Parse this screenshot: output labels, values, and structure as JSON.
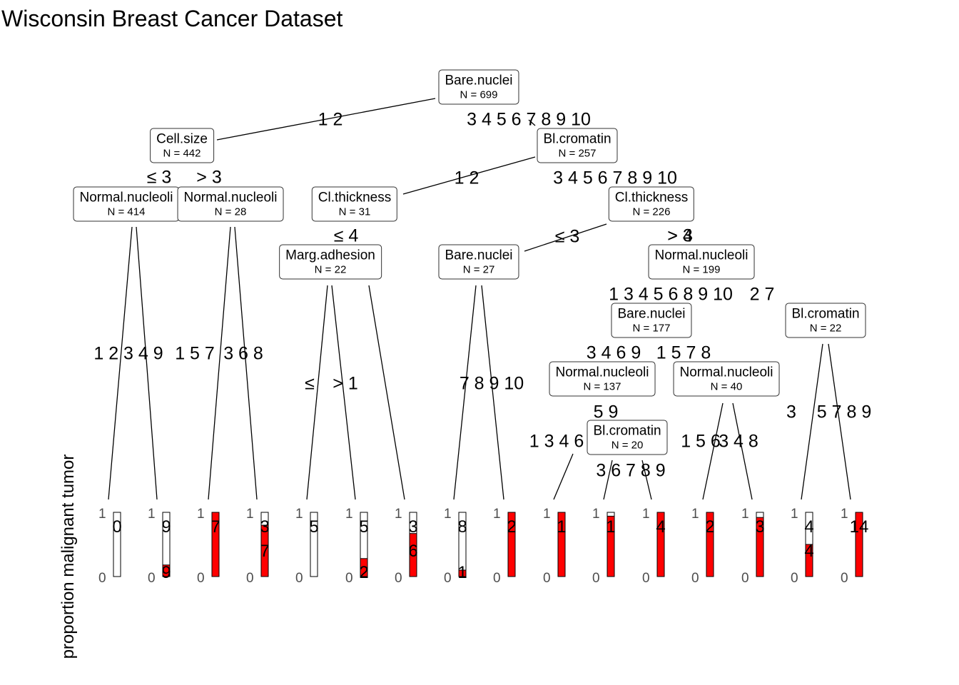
{
  "title": "Wisconsin Breast Cancer Dataset",
  "ylabel": "proportion malignant tumor",
  "colors": {
    "malignant": "#ff0000",
    "benign": "#ffffff",
    "edge": "#000000"
  },
  "nodes": {
    "n1": {
      "var": "Bare.nuclei",
      "n": "N = 699"
    },
    "n2": {
      "var": "Cell.size",
      "n": "N = 442"
    },
    "n3": {
      "var": "Bl.cromatin",
      "n": "N = 257"
    },
    "n4": {
      "var": "Normal.nucleoli",
      "n": "N = 414"
    },
    "n5": {
      "var": "Normal.nucleoli",
      "n": "N = 28"
    },
    "n6": {
      "var": "Cl.thickness",
      "n": "N = 31"
    },
    "n7": {
      "var": "Cl.thickness",
      "n": "N = 226"
    },
    "n8": {
      "var": "Marg.adhesion",
      "n": "N = 22"
    },
    "n9": {
      "var": "Bare.nuclei",
      "n": "N = 27"
    },
    "n10": {
      "var": "Normal.nucleoli",
      "n": "N = 199"
    },
    "n11": {
      "var": "Bare.nuclei",
      "n": "N = 177"
    },
    "n12": {
      "var": "Bl.cromatin",
      "n": "N = 22"
    },
    "n13": {
      "var": "Normal.nucleoli",
      "n": "N = 137"
    },
    "n14": {
      "var": "Normal.nucleoli",
      "n": "N = 40"
    },
    "n15": {
      "var": "Bl.cromatin",
      "n": "N = 20"
    }
  },
  "edge_labels": {
    "e1L": "1 2",
    "e1R": "3 4 5 6 7 8 9 10",
    "e2L": "≤ 3",
    "e2R": "> 3",
    "e3L": "1 2",
    "e3R": "3 4 5 6 7 8 9 10",
    "e4L": "1 2 3 4 9",
    "e4R": "1 5 7",
    "e5L": "3 6 8",
    "e6L": "≤ 4",
    "e6R": "> 4",
    "e7L": "≤ 3",
    "e7R": "> 3",
    "e8L": "≤",
    "e8R": "> 1",
    "e9R": "7 8 9 10",
    "e10L": "1 3 4 5 6 8 9 10",
    "e10R": "2 7",
    "e11L": "3 4 6 9",
    "e11R": "1 5 7 8",
    "e12L": "3",
    "e12R": "5 7 8 9",
    "e13L": "1 3 4 6",
    "e13R": "5 9",
    "e14L": "1 5 6",
    "e14R": "3 4 8",
    "e15R": "3 6 7 8 9"
  },
  "leaf_axis": {
    "top": "1",
    "bottom": "0"
  },
  "leaves": [
    {
      "top_label": "0",
      "bottom_label": "",
      "proportion": 0.0
    },
    {
      "top_label": "9",
      "bottom_label": "9",
      "proportion": 0.18
    },
    {
      "top_label": "7",
      "bottom_label": "",
      "proportion": 1.0
    },
    {
      "top_label": "3",
      "bottom_label": "7",
      "proportion": 0.8
    },
    {
      "top_label": "5",
      "bottom_label": "",
      "proportion": 0.0
    },
    {
      "top_label": "5",
      "bottom_label": "2",
      "proportion": 0.28
    },
    {
      "top_label": "3",
      "bottom_label": "6",
      "proportion": 0.67
    },
    {
      "top_label": "8",
      "bottom_label": "1",
      "proportion": 0.1
    },
    {
      "top_label": "2",
      "bottom_label": "",
      "proportion": 1.0
    },
    {
      "top_label": "1",
      "bottom_label": "",
      "proportion": 1.0
    },
    {
      "top_label": "1",
      "bottom_label": "",
      "proportion": 0.94
    },
    {
      "top_label": "4",
      "bottom_label": "",
      "proportion": 1.0
    },
    {
      "top_label": "2",
      "bottom_label": "",
      "proportion": 1.0
    },
    {
      "top_label": "3",
      "bottom_label": "",
      "proportion": 0.92
    },
    {
      "top_label": "4",
      "bottom_label": "4",
      "proportion": 0.5
    },
    {
      "top_label": "14",
      "bottom_label": "",
      "proportion": 1.0
    }
  ]
}
